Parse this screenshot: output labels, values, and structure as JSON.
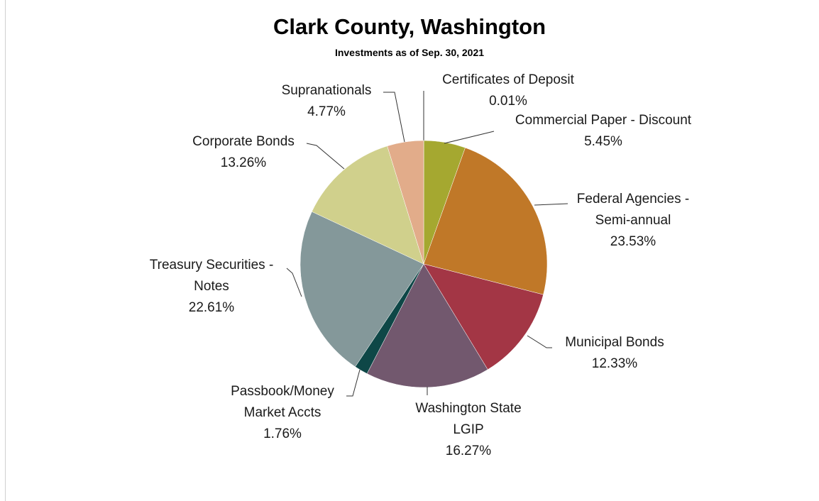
{
  "chart_data": {
    "type": "pie",
    "title": "Clark County, Washington",
    "subtitle": "Investments as of Sep. 30, 2021",
    "categories": [
      "Certificates of Deposit",
      "Commercial Paper - Discount",
      "Federal Agencies - Semi-annual",
      "Municipal Bonds",
      "Washington State LGIP",
      "Passbook/Money Market Accts",
      "Treasury Securities - Notes",
      "Corporate Bonds",
      "Supranationals"
    ],
    "values": [
      0.01,
      5.45,
      23.53,
      12.33,
      16.27,
      1.76,
      22.61,
      13.26,
      4.77
    ],
    "value_labels": [
      "0.01%",
      "5.45%",
      "23.53%",
      "12.33%",
      "16.27%",
      "1.76%",
      "22.61%",
      "13.26%",
      "4.77%"
    ],
    "colors": [
      "#4f6228",
      "#a5a830",
      "#c07828",
      "#a33645",
      "#72586e",
      "#0e4747",
      "#84989a",
      "#d0d08c",
      "#e2ac8a"
    ]
  }
}
